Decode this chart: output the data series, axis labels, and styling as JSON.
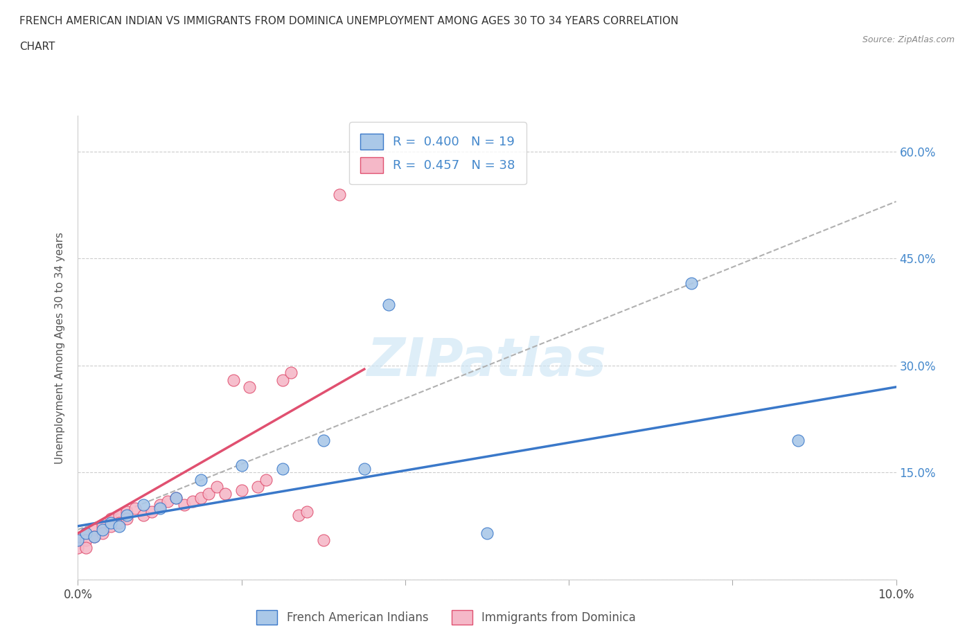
{
  "title_line1": "FRENCH AMERICAN INDIAN VS IMMIGRANTS FROM DOMINICA UNEMPLOYMENT AMONG AGES 30 TO 34 YEARS CORRELATION",
  "title_line2": "CHART",
  "source_text": "Source: ZipAtlas.com",
  "ylabel": "Unemployment Among Ages 30 to 34 years",
  "xlim": [
    0.0,
    0.1
  ],
  "ylim": [
    0.0,
    0.65
  ],
  "xtick_positions": [
    0.0,
    0.02,
    0.04,
    0.06,
    0.08,
    0.1
  ],
  "xticklabels": [
    "0.0%",
    "",
    "",
    "",
    "",
    "10.0%"
  ],
  "ytick_positions": [
    0.0,
    0.15,
    0.3,
    0.45,
    0.6
  ],
  "ytick_labels_right": [
    "",
    "15.0%",
    "30.0%",
    "45.0%",
    "60.0%"
  ],
  "blue_R": 0.4,
  "blue_N": 19,
  "pink_R": 0.457,
  "pink_N": 38,
  "watermark": "ZIPatlas",
  "blue_scatter_color": "#aac8e8",
  "blue_line_color": "#3a78c9",
  "pink_scatter_color": "#f5b8c8",
  "pink_line_color": "#e05070",
  "legend_blue_label": "French American Indians",
  "legend_pink_label": "Immigrants from Dominica",
  "blue_scatter_x": [
    0.0,
    0.001,
    0.002,
    0.003,
    0.004,
    0.005,
    0.006,
    0.008,
    0.01,
    0.012,
    0.015,
    0.02,
    0.025,
    0.03,
    0.035,
    0.038,
    0.05,
    0.075,
    0.088
  ],
  "blue_scatter_y": [
    0.055,
    0.065,
    0.06,
    0.07,
    0.08,
    0.075,
    0.09,
    0.105,
    0.1,
    0.115,
    0.14,
    0.16,
    0.155,
    0.195,
    0.155,
    0.385,
    0.065,
    0.415,
    0.195
  ],
  "pink_scatter_x": [
    0.0,
    0.0,
    0.001,
    0.001,
    0.001,
    0.002,
    0.002,
    0.003,
    0.003,
    0.004,
    0.004,
    0.005,
    0.005,
    0.006,
    0.006,
    0.007,
    0.008,
    0.009,
    0.01,
    0.011,
    0.012,
    0.013,
    0.014,
    0.015,
    0.016,
    0.017,
    0.018,
    0.019,
    0.02,
    0.021,
    0.022,
    0.023,
    0.025,
    0.026,
    0.027,
    0.028,
    0.03,
    0.032
  ],
  "pink_scatter_y": [
    0.055,
    0.045,
    0.065,
    0.055,
    0.045,
    0.07,
    0.06,
    0.075,
    0.065,
    0.085,
    0.075,
    0.09,
    0.08,
    0.095,
    0.085,
    0.1,
    0.09,
    0.095,
    0.105,
    0.11,
    0.115,
    0.105,
    0.11,
    0.115,
    0.12,
    0.13,
    0.12,
    0.28,
    0.125,
    0.27,
    0.13,
    0.14,
    0.28,
    0.29,
    0.09,
    0.095,
    0.055,
    0.54
  ],
  "blue_trend_x": [
    0.0,
    0.1
  ],
  "blue_trend_y": [
    0.075,
    0.27
  ],
  "pink_trend_x": [
    0.0,
    0.035
  ],
  "pink_trend_y": [
    0.065,
    0.295
  ],
  "dashed_trend_x": [
    0.0,
    0.1
  ],
  "dashed_trend_y": [
    0.07,
    0.53
  ],
  "legend_box_color": "#cccccc",
  "grid_color": "#cccccc",
  "right_ytick_color": "#4488cc",
  "title_color": "#333333",
  "source_color": "#888888"
}
